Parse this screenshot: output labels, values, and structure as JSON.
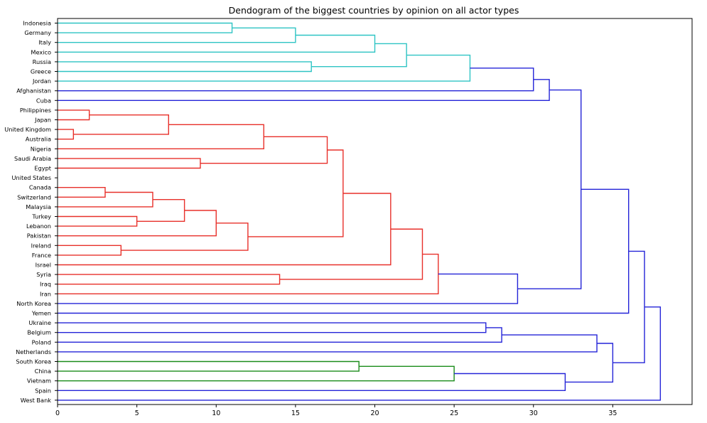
{
  "chart_data": {
    "type": "dendrogram",
    "title": "Dendogram of the biggest countries by opinion on all actor types",
    "xlabel": "",
    "ylabel": "",
    "orientation": "left",
    "xlim": [
      0,
      40
    ],
    "xticks": [
      0,
      5,
      10,
      15,
      20,
      25,
      30,
      35
    ],
    "grid": false,
    "colors": {
      "teal": "#2ec4c4",
      "red": "#e8302a",
      "blue": "#2424d8",
      "green": "#1a8c1a",
      "axis": "#000000",
      "text": "#000000"
    },
    "leaves": [
      "Indonesia",
      "Germany",
      "Italy",
      "Mexico",
      "Russia",
      "Greece",
      "Jordan",
      "Afghanistan",
      "Cuba",
      "Philippines",
      "Japan",
      "United Kingdom",
      "Australia",
      "Nigeria",
      "Saudi Arabia",
      "Egypt",
      "United States",
      "Canada",
      "Switzerland",
      "Malaysia",
      "Turkey",
      "Lebanon",
      "Pakistan",
      "Ireland",
      "France",
      "Israel",
      "Syria",
      "Iraq",
      "Iran",
      "North Korea",
      "Yemen",
      "Ukraine",
      "Belgium",
      "Poland",
      "Netherlands",
      "South Korea",
      "China",
      "Vietnam",
      "Spain",
      "West Bank"
    ],
    "links": [
      {
        "a": 0,
        "b": 1,
        "h": 11,
        "color": "teal"
      },
      {
        "a": "@0",
        "b": 2,
        "h": 15,
        "color": "teal"
      },
      {
        "a": "@1",
        "b": 3,
        "h": 20,
        "color": "teal"
      },
      {
        "a": 4,
        "b": 5,
        "h": 16,
        "color": "teal"
      },
      {
        "a": "@2",
        "b": "@3",
        "h": 22,
        "color": "teal"
      },
      {
        "a": "@4",
        "b": 6,
        "h": 26,
        "color": "teal"
      },
      {
        "a": "@5",
        "b": 7,
        "h": 30,
        "color": "blue"
      },
      {
        "a": "@6",
        "b": 8,
        "h": 31,
        "color": "blue"
      },
      {
        "a": 9,
        "b": 10,
        "h": 2,
        "color": "red"
      },
      {
        "a": 11,
        "b": 12,
        "h": 1,
        "color": "red"
      },
      {
        "a": "@8",
        "b": "@9",
        "h": 7,
        "color": "red"
      },
      {
        "a": "@10",
        "b": 13,
        "h": 13,
        "color": "red"
      },
      {
        "a": 14,
        "b": 15,
        "h": 9,
        "color": "red"
      },
      {
        "a": "@11",
        "b": "@12",
        "h": 17,
        "color": "red"
      },
      {
        "a": 17,
        "b": 18,
        "h": 3,
        "color": "red"
      },
      {
        "a": "@14",
        "b": 19,
        "h": 6,
        "color": "red"
      },
      {
        "a": 20,
        "b": 21,
        "h": 5,
        "color": "red"
      },
      {
        "a": "@15",
        "b": "@16",
        "h": 8,
        "color": "red"
      },
      {
        "a": "@17",
        "b": 22,
        "h": 10,
        "color": "red"
      },
      {
        "a": 23,
        "b": 24,
        "h": 4,
        "color": "red"
      },
      {
        "a": "@18",
        "b": "@19",
        "h": 12,
        "color": "red"
      },
      {
        "a": "@13",
        "b": "@20",
        "h": 18,
        "color": "red"
      },
      {
        "a": "@21",
        "b": 25,
        "h": 21,
        "color": "red"
      },
      {
        "a": 26,
        "b": 27,
        "h": 14,
        "color": "red"
      },
      {
        "a": "@22",
        "b": "@23",
        "h": 23,
        "color": "red"
      },
      {
        "a": "@24",
        "b": 28,
        "h": 24,
        "color": "red"
      },
      {
        "a": "@25",
        "b": 29,
        "h": 29,
        "color": "blue"
      },
      {
        "a": "@7",
        "b": "@26",
        "h": 33,
        "color": "blue"
      },
      {
        "a": "@27",
        "b": 30,
        "h": 36,
        "color": "blue"
      },
      {
        "a": 31,
        "b": 32,
        "h": 27,
        "color": "blue"
      },
      {
        "a": "@29",
        "b": 33,
        "h": 28,
        "color": "blue"
      },
      {
        "a": "@30",
        "b": 34,
        "h": 34,
        "color": "blue"
      },
      {
        "a": 35,
        "b": 36,
        "h": 19,
        "color": "green"
      },
      {
        "a": "@32",
        "b": 37,
        "h": 25,
        "color": "green"
      },
      {
        "a": "@33",
        "b": 38,
        "h": 32,
        "color": "blue"
      },
      {
        "a": "@31",
        "b": "@34",
        "h": 35,
        "color": "blue"
      },
      {
        "a": "@28",
        "b": "@35",
        "h": 37,
        "color": "blue"
      },
      {
        "a": "@36",
        "b": 39,
        "h": 38,
        "color": "blue"
      }
    ]
  }
}
